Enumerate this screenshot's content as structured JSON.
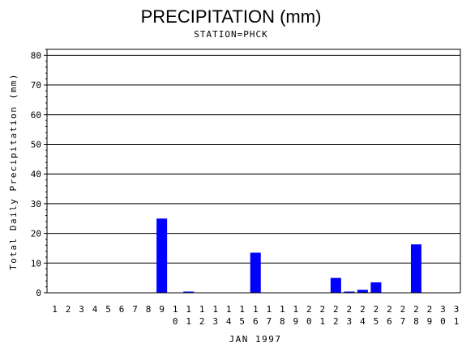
{
  "chart_data": {
    "type": "bar",
    "title": "PRECIPITATION (mm)",
    "subtitle": "STATION=PHCK",
    "xlabel": "JAN 1997",
    "ylabel": "Total Daily Precipitation (mm)",
    "ylim": [
      0,
      82
    ],
    "yticks": [
      0,
      10,
      20,
      30,
      40,
      50,
      60,
      70,
      80
    ],
    "grid": true,
    "bar_color": "#0000ff",
    "categories": [
      "1",
      "2",
      "3",
      "4",
      "5",
      "6",
      "7",
      "8",
      "9",
      "10",
      "11",
      "12",
      "13",
      "14",
      "15",
      "16",
      "17",
      "18",
      "19",
      "20",
      "21",
      "22",
      "23",
      "24",
      "25",
      "26",
      "27",
      "28",
      "29",
      "30",
      "31"
    ],
    "values": [
      0,
      0,
      0,
      0,
      0,
      0,
      0,
      0,
      25,
      0,
      0.3,
      0,
      0,
      0,
      0,
      13.5,
      0,
      0,
      0,
      0,
      0,
      5,
      0.3,
      1,
      3.5,
      0,
      0,
      16.3,
      0,
      0,
      0
    ]
  }
}
